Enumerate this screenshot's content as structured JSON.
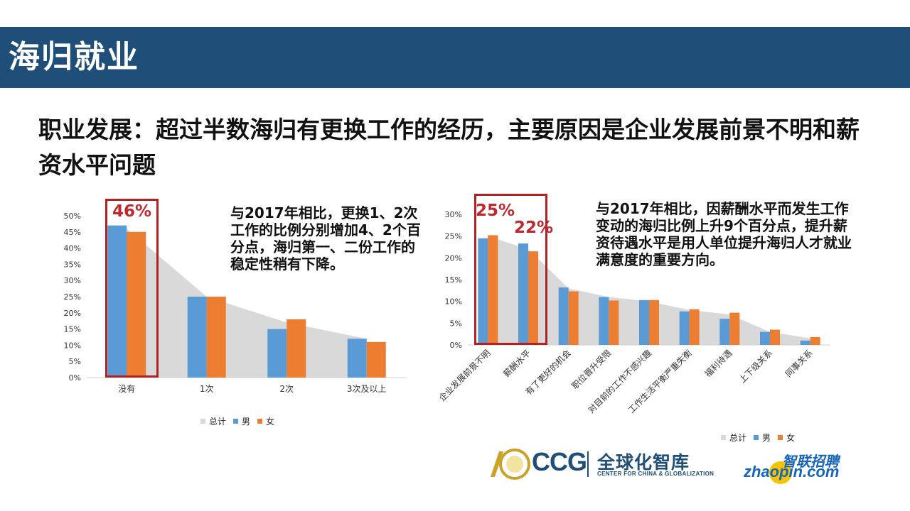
{
  "header": {
    "title": "海归就业"
  },
  "headline": "职业发展：超过半数海归有更换工作的经历，主要原因是企业发展前景不明和薪资水平问题",
  "left_note": "与2017年相比，更换1、2次工作的比例分别增加4、2个百分点，海归第一、二份工作的稳定性稍有下降。",
  "right_note": "与2017年相比，因薪酬水平而发生工作变动的海归比例上升9个百分点，提升薪资待遇水平是用人单位提升海归人才就业满意度的重要方向。",
  "left_callout": "46%",
  "right_callouts": [
    "25%",
    "22%"
  ],
  "colors": {
    "header": "#1f4e79",
    "total": "#d9d9d9",
    "male": "#5b9bd5",
    "female": "#ed7d31",
    "callout": "#c0282d"
  },
  "chart_data": [
    {
      "type": "bar",
      "categories": [
        "没有",
        "1次",
        "2次",
        "3次及以上"
      ],
      "series": [
        {
          "name": "总计",
          "values": [
            46,
            25,
            17,
            12
          ]
        },
        {
          "name": "男",
          "values": [
            47,
            25,
            15,
            12
          ]
        },
        {
          "name": "女",
          "values": [
            45,
            25,
            18,
            11
          ]
        }
      ],
      "yticks": [
        "0%",
        "5%",
        "10%",
        "15%",
        "20%",
        "25%",
        "30%",
        "35%",
        "40%",
        "45%",
        "50%"
      ],
      "ylim": [
        0,
        50
      ],
      "legend": "bottom",
      "grid": false
    },
    {
      "type": "bar",
      "categories": [
        "企业发展前景不明",
        "薪酬水平",
        "有了更好的机会",
        "职位晋升受限",
        "对目前的工作不感兴趣",
        "工作生活平衡严重失衡",
        "福利待遇",
        "上下级关系",
        "同事关系"
      ],
      "series": [
        {
          "name": "总计",
          "values": [
            25,
            22,
            13,
            11,
            10,
            8,
            7,
            3,
            1.5
          ]
        },
        {
          "name": "男",
          "values": [
            24.5,
            23.3,
            13.2,
            11,
            10.3,
            7.7,
            6,
            3,
            1
          ]
        },
        {
          "name": "女",
          "values": [
            25.2,
            21.5,
            12.3,
            10.2,
            10.3,
            8.2,
            7.4,
            3.5,
            1.8
          ]
        }
      ],
      "yticks": [
        "0%",
        "5%",
        "10%",
        "15%",
        "20%",
        "25%",
        "30%"
      ],
      "ylim": [
        0,
        30
      ],
      "legend": "bottom",
      "grid": false
    }
  ],
  "logos": {
    "ccg_mark": "CCG",
    "ccg_cn": "全球化智库",
    "ccg_en": "CENTER FOR CHINA & GLOBALIZATION",
    "zhaopin_cn": "智联招聘",
    "zhaopin_en": "zhaopin.com"
  }
}
